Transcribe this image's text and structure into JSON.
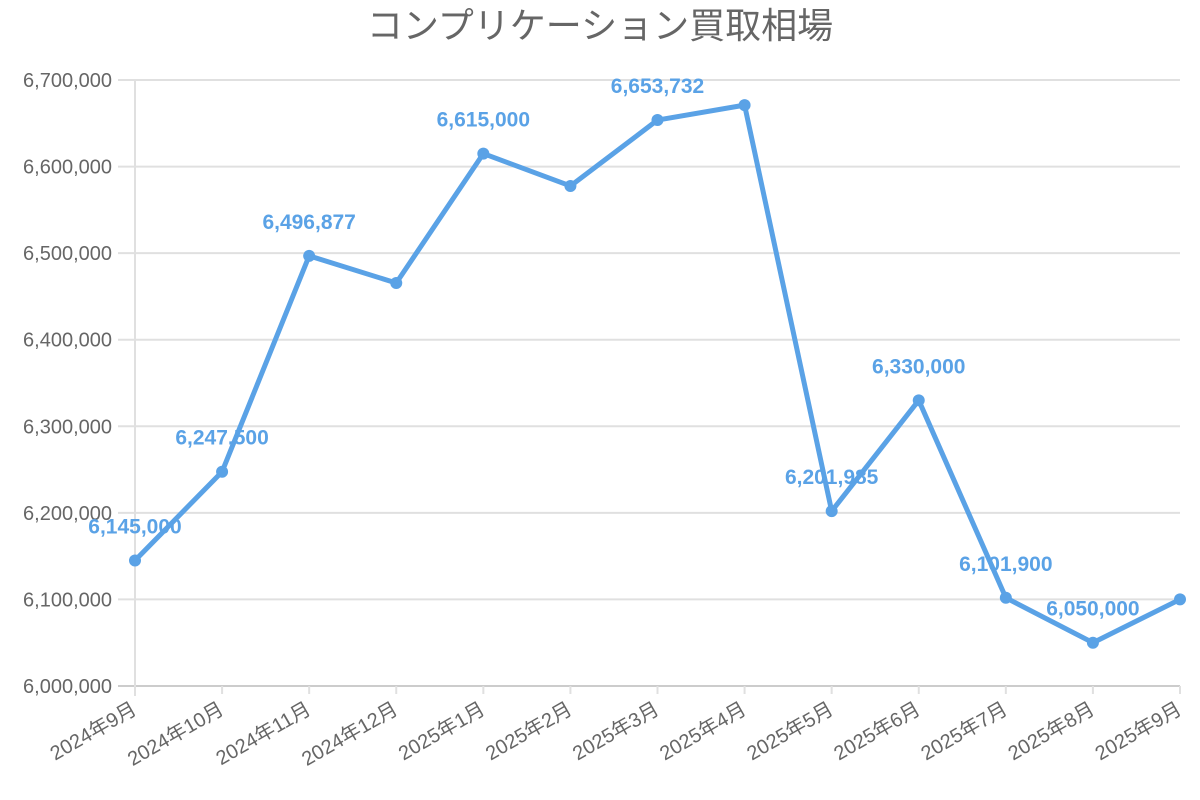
{
  "chart_data": {
    "type": "line",
    "title": "コンプリケーション買取相場",
    "xlabel": "",
    "ylabel": "",
    "categories": [
      "2024年9月",
      "2024年10月",
      "2024年11月",
      "2024年12月",
      "2025年1月",
      "2025年2月",
      "2025年3月",
      "2025年4月",
      "2025年5月",
      "2025年6月",
      "2025年7月",
      "2025年8月",
      "2025年9月"
    ],
    "values": [
      6145000,
      6247500,
      6496877,
      6465500,
      6615000,
      6577600,
      6653732,
      6671000,
      6201985,
      6330000,
      6101900,
      6050000,
      6100000
    ],
    "data_labels": [
      "6,145,000",
      "6,247,500",
      "6,496,877",
      null,
      "6,615,000",
      null,
      "6,653,732",
      null,
      "6,201,985",
      "6,330,000",
      "6,101,900",
      "6,050,000",
      null
    ],
    "ylim": [
      6000000,
      6700000
    ],
    "yticks": [
      "6,000,000",
      "6,100,000",
      "6,200,000",
      "6,300,000",
      "6,400,000",
      "6,500,000",
      "6,600,000",
      "6,700,000"
    ],
    "ytick_values": [
      6000000,
      6100000,
      6200000,
      6300000,
      6400000,
      6500000,
      6600000,
      6700000
    ],
    "grid": true,
    "legend": "none",
    "colors": {
      "line": "#5aa2e6",
      "grid": "#e0e0e0",
      "text": "#666666"
    }
  }
}
